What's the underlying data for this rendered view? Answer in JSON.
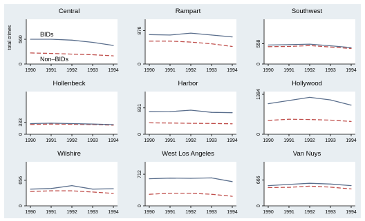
{
  "chart_data": {
    "type": "line",
    "layout": "3x3 small multiples",
    "x_ticks": [
      "1990",
      "1991",
      "1992",
      "1993",
      "1994"
    ],
    "ylabel": "total crimes",
    "colors": {
      "bids": "#5a6e8c",
      "nonbids": "#c0504d",
      "panel_bg": "#e8eef2"
    },
    "series_styles": {
      "bids": "solid",
      "nonbids": "dashed"
    },
    "annotations": {
      "bids": "BIDs",
      "nonbids": "Non–BIDs"
    },
    "panels": [
      {
        "title": "Central",
        "ytick": "560",
        "ytick_value": 560,
        "ymax": 950,
        "bids": [
          560,
          560,
          540,
          490,
          420
        ],
        "nonbids": [
          250,
          240,
          225,
          210,
          185
        ]
      },
      {
        "title": "Rampart",
        "ytick": "876",
        "ytick_value": 876,
        "ymax": 1100,
        "bids": [
          770,
          760,
          810,
          760,
          710
        ],
        "nonbids": [
          600,
          600,
          575,
          530,
          460
        ]
      },
      {
        "title": "Southwest",
        "ytick": "558",
        "ytick_value": 558,
        "ymax": 1150,
        "bids": [
          520,
          530,
          545,
          500,
          450
        ],
        "nonbids": [
          475,
          480,
          505,
          465,
          425
        ]
      },
      {
        "title": "Hollenbeck",
        "ytick": "333",
        "ytick_value": 333,
        "ymax": 1120,
        "bids": [
          300,
          310,
          300,
          285,
          270
        ],
        "nonbids": [
          275,
          285,
          280,
          270,
          255
        ]
      },
      {
        "title": "Harbor",
        "ytick": "831",
        "ytick_value": 831,
        "ymax": 1260,
        "bids": [
          710,
          715,
          760,
          690,
          680
        ],
        "nonbids": [
          360,
          355,
          345,
          340,
          330
        ]
      },
      {
        "title": "Hollywood",
        "ytick": "1384",
        "ytick_value": 1384,
        "ymax": 1384,
        "bids": [
          1060,
          1170,
          1280,
          1190,
          1010
        ],
        "nonbids": [
          480,
          520,
          510,
          490,
          445
        ]
      },
      {
        "title": "Wilshire",
        "ytick": "656",
        "ytick_value": 656,
        "ymax": 1060,
        "bids": [
          430,
          445,
          520,
          430,
          440
        ],
        "nonbids": [
          370,
          385,
          385,
          355,
          320
        ]
      },
      {
        "title": "West Los Angeles",
        "ytick": "712",
        "ytick_value": 712,
        "ymax": 930,
        "bids": [
          610,
          625,
          620,
          630,
          545
        ],
        "nonbids": [
          260,
          285,
          285,
          260,
          215
        ]
      },
      {
        "title": "Van Nuys",
        "ytick": "666",
        "ytick_value": 666,
        "ymax": 1060,
        "bids": [
          520,
          550,
          580,
          560,
          520
        ],
        "nonbids": [
          470,
          475,
          505,
          480,
          435
        ]
      }
    ]
  }
}
